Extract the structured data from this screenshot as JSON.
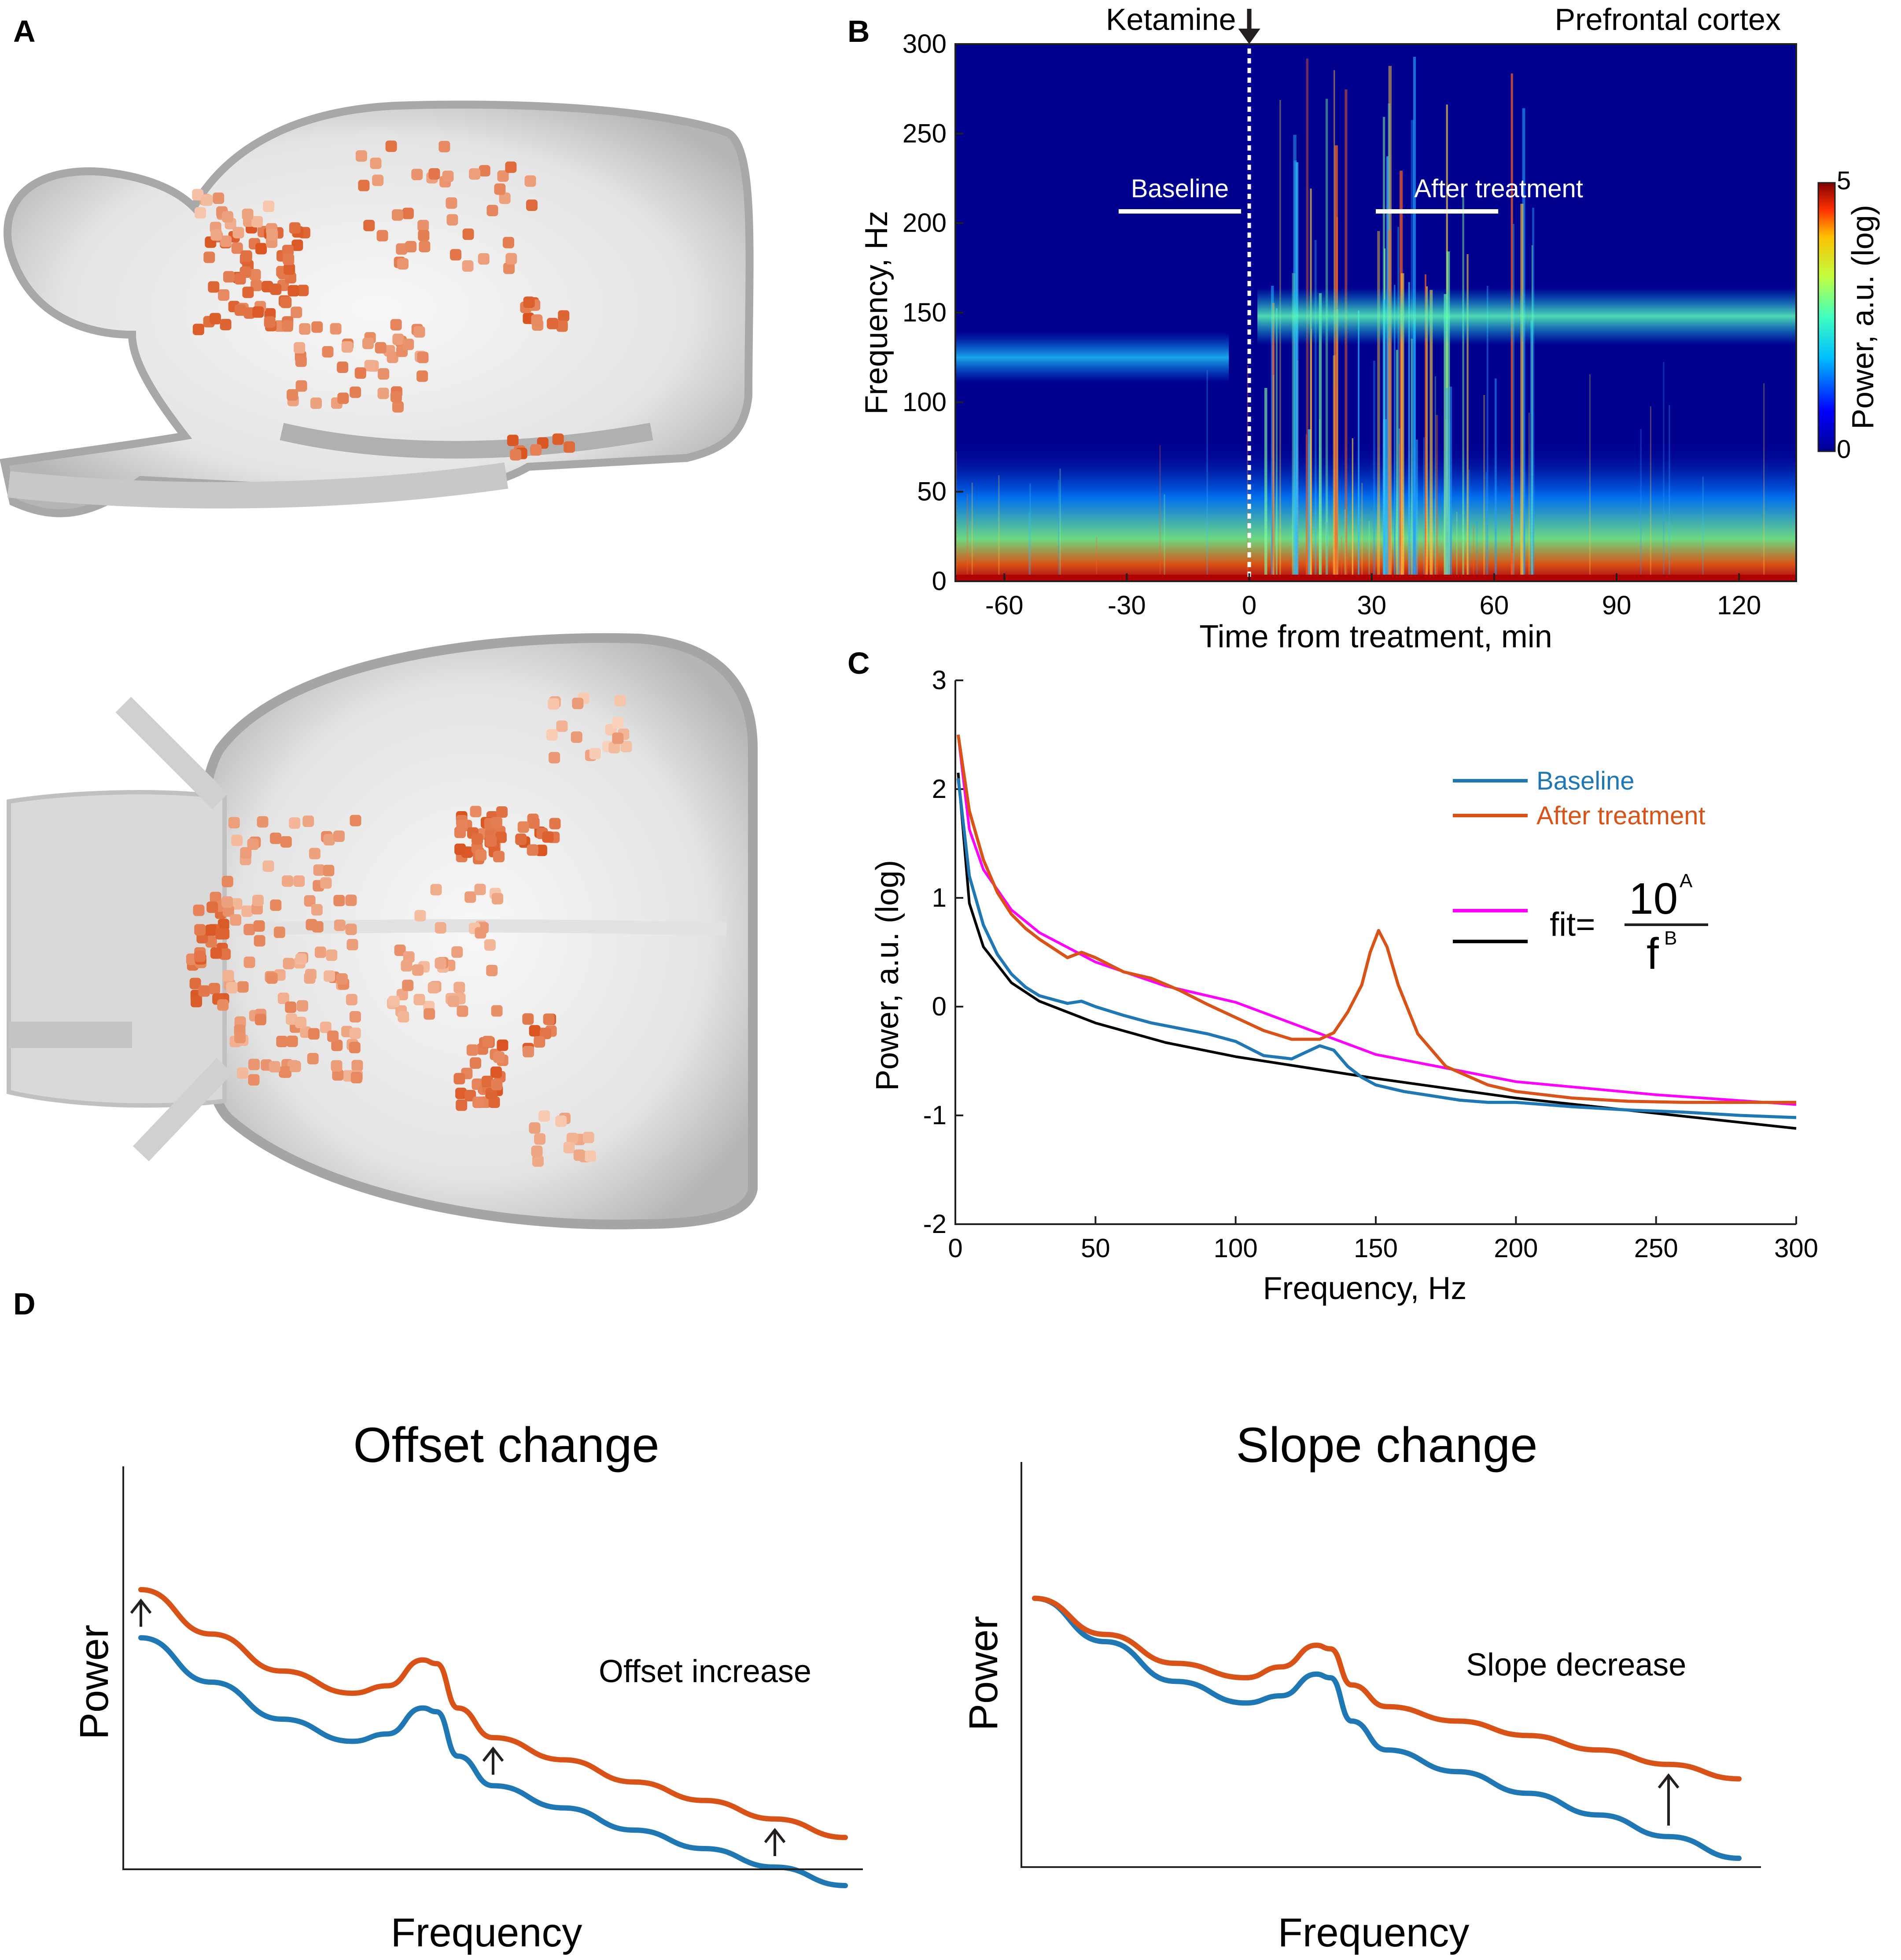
{
  "panels": {
    "a": "A",
    "b": "B",
    "c": "C",
    "d": "D"
  },
  "colors": {
    "baseline": "#1f77b4",
    "after": "#d95319",
    "fit_after": "#ff00ff",
    "fit_baseline": "#000000",
    "heatmap_bg": "#00008f",
    "dot_dark": "#d9531e",
    "dot_light": "#f7c7ad"
  },
  "chart_data": [
    {
      "id": "B",
      "type": "heatmap",
      "title": "Prefrontal cortex",
      "annotation": "Ketamine",
      "xlabel": "Time from treatment, min",
      "ylabel": "Frequency, Hz",
      "xlim": [
        -72,
        134
      ],
      "ylim": [
        0,
        300
      ],
      "xticks": [
        -60,
        -30,
        0,
        30,
        60,
        90,
        120
      ],
      "xtick_labels": [
        "-60",
        "-30",
        "0",
        "30",
        "60",
        "90",
        "120"
      ],
      "yticks": [
        0,
        50,
        100,
        150,
        200,
        250,
        300
      ],
      "ytick_labels": [
        "0",
        "50",
        "100",
        "150",
        "200",
        "250",
        "300"
      ],
      "windows": [
        {
          "label": "Baseline",
          "start": -32,
          "end": -2
        },
        {
          "label": "After treatment",
          "start": 31,
          "end": 61
        }
      ],
      "treatment_time": 0,
      "colorbar": {
        "label": "Power, a.u. (log)",
        "min": 0,
        "max": 5,
        "min_label": "0",
        "max_label": "5"
      },
      "bands": [
        {
          "name": "high-frequency oscillation baseline",
          "t_start": -72,
          "t_end": -5,
          "freq_hz": 125
        },
        {
          "name": "high-frequency oscillation after",
          "t_start": 2,
          "t_end": 134,
          "freq_hz": 148
        }
      ]
    },
    {
      "id": "C",
      "type": "line",
      "xlabel": "Frequency, Hz",
      "ylabel": "Power, a.u. (log)",
      "xlim": [
        0,
        300
      ],
      "ylim": [
        -2,
        3
      ],
      "xticks": [
        0,
        50,
        100,
        150,
        200,
        250,
        300
      ],
      "xtick_labels": [
        "0",
        "50",
        "100",
        "150",
        "200",
        "250",
        "300"
      ],
      "yticks": [
        -2,
        -1,
        0,
        1,
        2,
        3
      ],
      "ytick_labels": [
        "-2",
        "-1",
        "0",
        "1",
        "2",
        "3"
      ],
      "legend": [
        {
          "label": "Baseline",
          "color": "#1f77b4"
        },
        {
          "label": "After treatment",
          "color": "#d95319"
        }
      ],
      "fit_label": {
        "prefix": "fit=",
        "numerator": "10",
        "num_exp": "A",
        "denominator": "f",
        "den_exp": "B"
      },
      "series": [
        {
          "name": "Baseline",
          "x": [
            1,
            5,
            10,
            15,
            20,
            25,
            30,
            40,
            45,
            50,
            60,
            70,
            80,
            90,
            100,
            110,
            120,
            125,
            130,
            135,
            140,
            145,
            150,
            160,
            170,
            180,
            190,
            200,
            210,
            220,
            240,
            260,
            280,
            300
          ],
          "y": [
            2.1,
            1.2,
            0.75,
            0.48,
            0.3,
            0.18,
            0.1,
            0.03,
            0.05,
            0.0,
            -0.08,
            -0.15,
            -0.2,
            -0.25,
            -0.32,
            -0.45,
            -0.48,
            -0.42,
            -0.36,
            -0.4,
            -0.55,
            -0.65,
            -0.72,
            -0.78,
            -0.82,
            -0.86,
            -0.88,
            -0.88,
            -0.9,
            -0.92,
            -0.95,
            -0.97,
            -1.0,
            -1.02
          ]
        },
        {
          "name": "After treatment",
          "x": [
            1,
            5,
            10,
            15,
            20,
            25,
            30,
            40,
            45,
            50,
            60,
            70,
            80,
            90,
            100,
            110,
            120,
            130,
            135,
            140,
            145,
            148,
            151,
            154,
            158,
            165,
            175,
            190,
            200,
            220,
            240,
            260,
            280,
            300
          ],
          "y": [
            2.5,
            1.8,
            1.35,
            1.05,
            0.85,
            0.72,
            0.62,
            0.45,
            0.5,
            0.45,
            0.32,
            0.26,
            0.15,
            0.02,
            -0.1,
            -0.22,
            -0.3,
            -0.3,
            -0.24,
            -0.05,
            0.2,
            0.5,
            0.7,
            0.55,
            0.2,
            -0.25,
            -0.55,
            -0.72,
            -0.78,
            -0.84,
            -0.87,
            -0.88,
            -0.88,
            -0.88
          ]
        },
        {
          "name": "Fit (after treatment)",
          "x": [
            1,
            5,
            10,
            20,
            30,
            50,
            75,
            100,
            150,
            200,
            250,
            300
          ],
          "y": [
            2.5,
            1.63,
            1.26,
            0.89,
            0.68,
            0.41,
            0.19,
            0.04,
            -0.44,
            -0.69,
            -0.81,
            -0.9
          ]
        },
        {
          "name": "Fit (baseline)",
          "x": [
            1,
            5,
            10,
            20,
            30,
            50,
            75,
            100,
            150,
            200,
            250,
            300
          ],
          "y": [
            2.15,
            0.95,
            0.55,
            0.22,
            0.05,
            -0.15,
            -0.33,
            -0.46,
            -0.66,
            -0.84,
            -0.98,
            -1.12
          ]
        }
      ]
    },
    {
      "id": "D1",
      "type": "line",
      "title": "Offset change",
      "xlabel": "Frequency",
      "ylabel": "Power",
      "annotation": "Offset increase",
      "schematic": true,
      "x": [
        0,
        0.1,
        0.2,
        0.3,
        0.35,
        0.4,
        0.42,
        0.45,
        0.5,
        0.6,
        0.7,
        0.8,
        0.9,
        1
      ],
      "series": [
        {
          "name": "Baseline",
          "values": [
            0.62,
            0.5,
            0.4,
            0.34,
            0.36,
            0.43,
            0.42,
            0.3,
            0.22,
            0.16,
            0.1,
            0.05,
            0.0,
            -0.05
          ]
        },
        {
          "name": "After treatment",
          "values": [
            0.75,
            0.63,
            0.53,
            0.47,
            0.49,
            0.56,
            0.55,
            0.43,
            0.35,
            0.29,
            0.23,
            0.18,
            0.13,
            0.08
          ]
        }
      ]
    },
    {
      "id": "D2",
      "type": "line",
      "title": "Slope change",
      "xlabel": "Frequency",
      "ylabel": "Power",
      "annotation": "Slope decrease",
      "schematic": true,
      "x": [
        0,
        0.1,
        0.2,
        0.3,
        0.35,
        0.4,
        0.42,
        0.45,
        0.5,
        0.6,
        0.7,
        0.8,
        0.9,
        1
      ],
      "series": [
        {
          "name": "Baseline",
          "values": [
            0.72,
            0.6,
            0.49,
            0.43,
            0.45,
            0.51,
            0.5,
            0.38,
            0.3,
            0.24,
            0.18,
            0.12,
            0.06,
            0.0
          ]
        },
        {
          "name": "After treatment",
          "values": [
            0.72,
            0.62,
            0.54,
            0.5,
            0.53,
            0.59,
            0.58,
            0.48,
            0.42,
            0.38,
            0.34,
            0.3,
            0.26,
            0.22
          ]
        }
      ]
    }
  ]
}
